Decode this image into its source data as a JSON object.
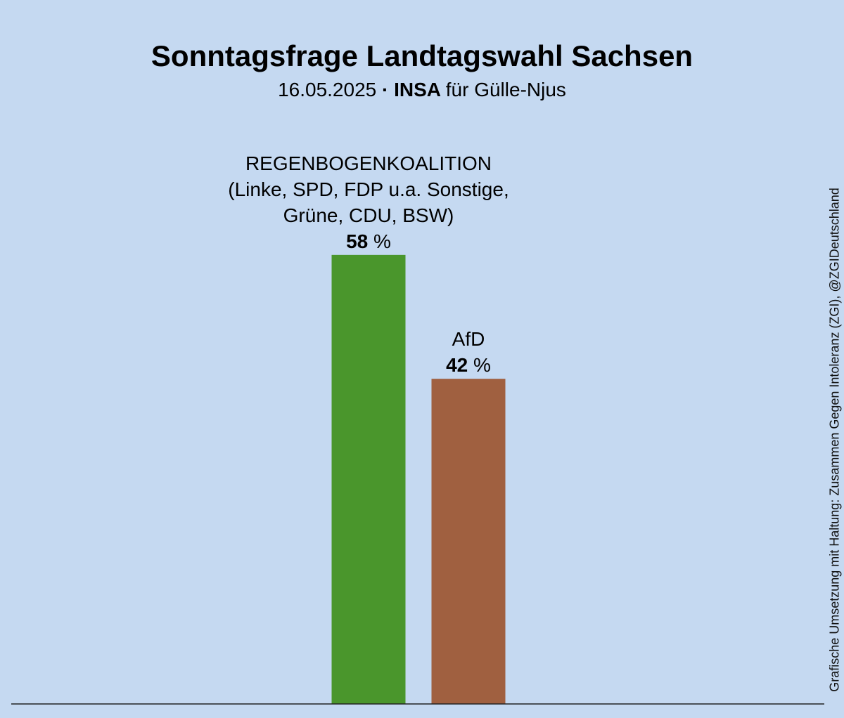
{
  "chart_data": {
    "type": "bar",
    "title": "Sonntagsfrage Landtagswahl Sachsen",
    "subtitle": {
      "date": "16.05.2025",
      "separator": "·",
      "institute": "INSA",
      "client": "für Gülle-Njus"
    },
    "categories": [
      "REGENBOGENKOALITION",
      "AfD"
    ],
    "category_sublabels": [
      [
        "(Linke, SPD, FDP u.a. Sonstige,",
        "Grüne, CDU, BSW)"
      ],
      []
    ],
    "values": [
      58,
      42
    ],
    "value_unit": "%",
    "colors": [
      "#4a962c",
      "#a06040"
    ],
    "ylim": [
      0,
      100
    ],
    "grid": false,
    "legend": "none"
  },
  "credit": "Grafische Umsetzung mit Haltung: Zusammen Gegen Intoleranz (ZGI), @ZGIDeutschland"
}
